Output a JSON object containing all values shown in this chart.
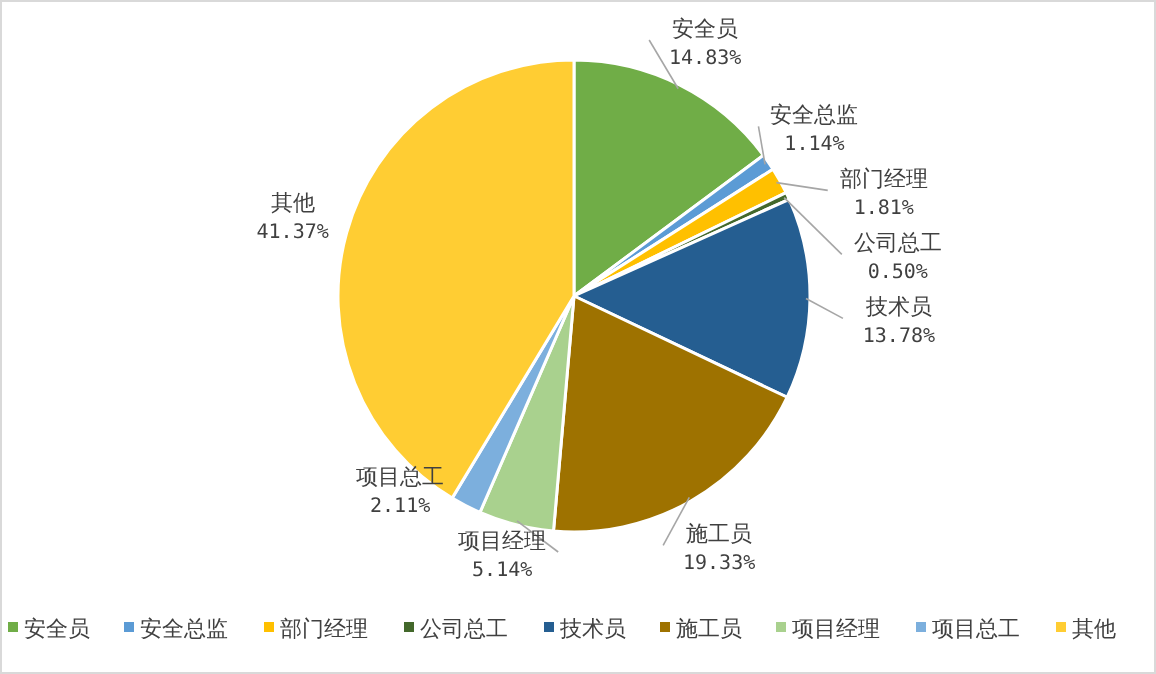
{
  "chart_data": {
    "type": "pie",
    "categories": [
      "安全员",
      "安全总监",
      "部门经理",
      "公司总工",
      "技术员",
      "施工员",
      "项目经理",
      "项目总工",
      "其他"
    ],
    "values": [
      14.83,
      1.14,
      1.81,
      0.5,
      13.78,
      19.33,
      5.14,
      2.11,
      41.37
    ],
    "colors": [
      "#70ad47",
      "#5b9bd5",
      "#ffc000",
      "#43682b",
      "#255e91",
      "#9e7200",
      "#a9d18e",
      "#7cafdd",
      "#ffcd33"
    ],
    "value_labels": [
      "14.83%",
      "1.14%",
      "1.81%",
      "0.50%",
      "13.78%",
      "19.33%",
      "5.14%",
      "2.11%",
      "41.37%"
    ],
    "legend": "bottom"
  }
}
